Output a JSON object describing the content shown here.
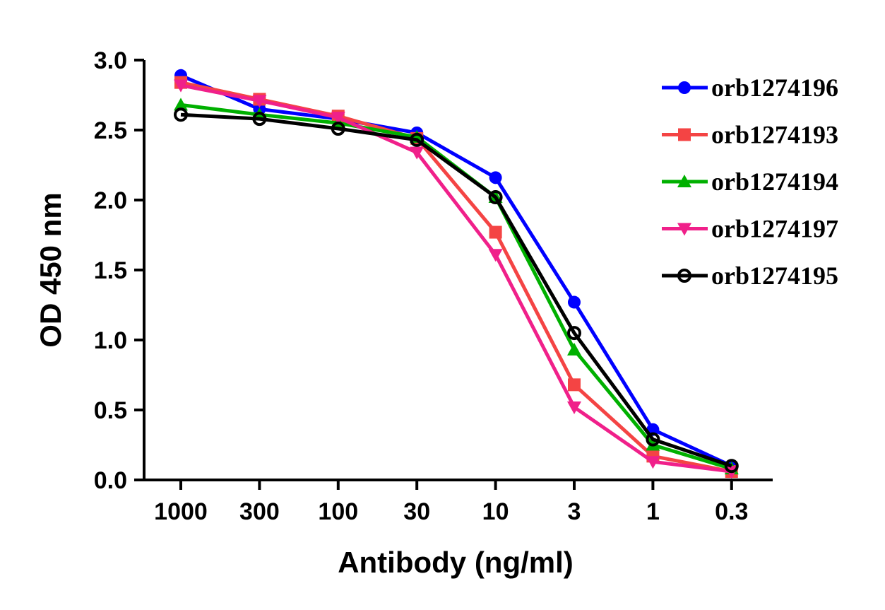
{
  "chart_data": {
    "type": "line",
    "title": "",
    "xlabel": "Antibody (ng/ml)",
    "ylabel": "OD 450 nm",
    "categories": [
      "1000",
      "300",
      "100",
      "30",
      "10",
      "3",
      "1",
      "0.3"
    ],
    "yticks": [
      "0.0",
      "0.5",
      "1.0",
      "1.5",
      "2.0",
      "2.5",
      "3.0"
    ],
    "ylim": [
      0,
      3.0
    ],
    "grid": false,
    "legend_placement": "top-right",
    "series": [
      {
        "name": "orb1274196",
        "color": "#0000ff",
        "marker": "circle-filled",
        "values": [
          2.89,
          2.65,
          2.58,
          2.48,
          2.16,
          1.27,
          0.36,
          0.1
        ]
      },
      {
        "name": "orb1274193",
        "color": "#f44444",
        "marker": "square",
        "values": [
          2.84,
          2.72,
          2.6,
          2.44,
          1.77,
          0.68,
          0.17,
          0.06
        ]
      },
      {
        "name": "orb1274194",
        "color": "#00b000",
        "marker": "triangle-up",
        "values": [
          2.68,
          2.61,
          2.55,
          2.45,
          2.02,
          0.93,
          0.25,
          0.08
        ]
      },
      {
        "name": "orb1274197",
        "color": "#f0208a",
        "marker": "triangle-down",
        "values": [
          2.82,
          2.71,
          2.59,
          2.34,
          1.61,
          0.52,
          0.13,
          0.06
        ]
      },
      {
        "name": "orb1274195",
        "color": "#000000",
        "marker": "circle-open",
        "values": [
          2.61,
          2.58,
          2.51,
          2.43,
          2.02,
          1.05,
          0.29,
          0.1
        ]
      }
    ]
  }
}
